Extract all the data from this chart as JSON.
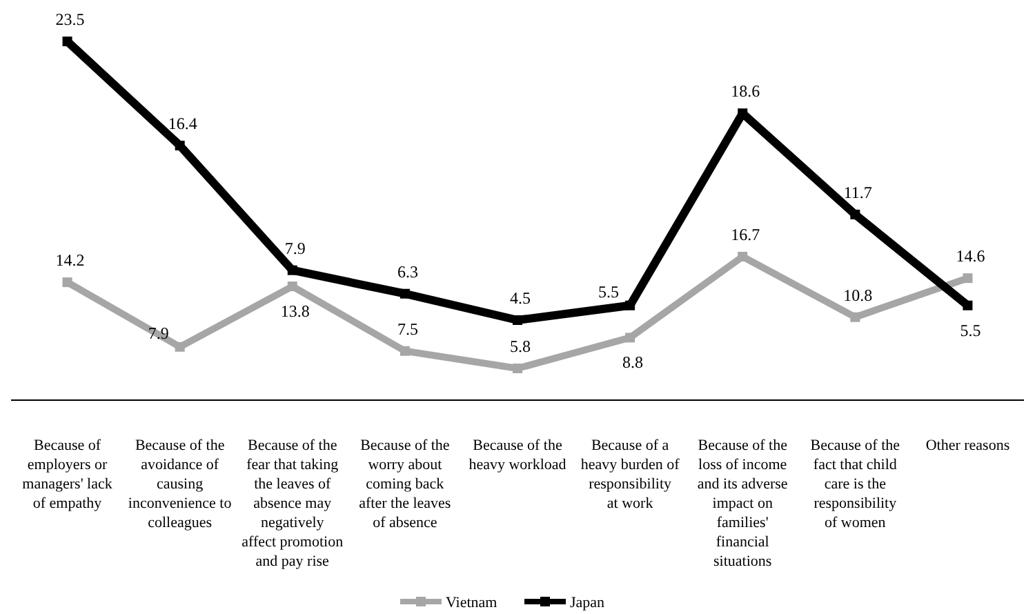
{
  "chart_data": {
    "type": "line",
    "categories": [
      "Because of employers or managers' lack of empathy",
      "Because of the avoidance of causing inconvenience to colleagues",
      "Because of the fear that taking the leaves of absence may negatively affect promotion and pay rise",
      "Because of the worry about coming back after the leaves of absence",
      "Because of the heavy workload",
      "Because of a heavy burden of responsibility at work",
      "Because of the loss of income and its adverse impact on families' financial situations",
      "Because of the fact that child care is the responsibility of women",
      "Other reasons"
    ],
    "series": [
      {
        "name": "Vietnam",
        "color": "#a6a6a6",
        "axis": "y2",
        "values": [
          14.2,
          7.9,
          13.8,
          7.5,
          5.8,
          8.8,
          16.7,
          10.8,
          14.6
        ]
      },
      {
        "name": "Japan",
        "color": "#000000",
        "values": [
          23.5,
          16.4,
          7.9,
          6.3,
          4.5,
          5.5,
          18.6,
          11.7,
          5.5
        ]
      }
    ],
    "tick_labels": "x",
    "data_labels": true,
    "marker": "square",
    "legend": "bottom"
  }
}
